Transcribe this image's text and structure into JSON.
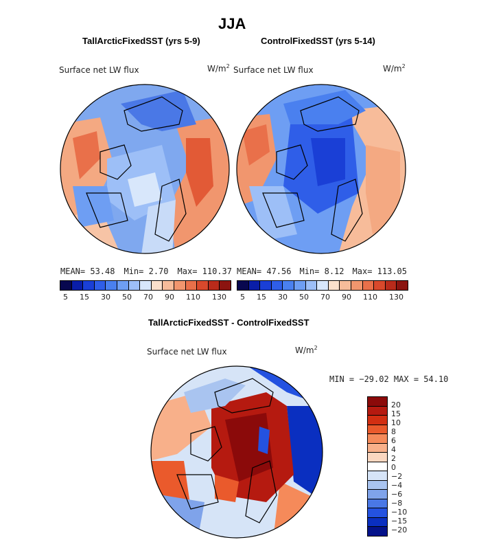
{
  "figure": {
    "title": "JJA"
  },
  "panels": [
    {
      "title": "TallArcticFixedSST (yrs 5-9)",
      "field": "Surface net LW flux",
      "units_base": "W/m",
      "units_exp": "2",
      "stats": {
        "mean": "MEAN=  53.48",
        "min": "Min=   2.70",
        "max": "Max= 110.37"
      },
      "colorbar": {
        "colors": [
          "#08084f",
          "#0a1ea8",
          "#1a3fd6",
          "#2f5ee8",
          "#4a80ef",
          "#6e9ef3",
          "#9dbff7",
          "#d8e7fb",
          "#fbe0cc",
          "#f7bc9a",
          "#f1966e",
          "#e9704a",
          "#d9492c",
          "#b92b1b",
          "#8b1410"
        ],
        "ticks": [
          "5",
          "15",
          "30",
          "50",
          "70",
          "90",
          "110",
          "130"
        ]
      }
    },
    {
      "title": "ControlFixedSST (yrs 5-14)",
      "field": "Surface net LW flux",
      "units_base": "W/m",
      "units_exp": "2",
      "stats": {
        "mean": "MEAN=  47.56",
        "min": "Min=   8.12",
        "max": "Max= 113.05"
      },
      "colorbar": {
        "colors": [
          "#08084f",
          "#0a1ea8",
          "#1a3fd6",
          "#2f5ee8",
          "#4a80ef",
          "#6e9ef3",
          "#9dbff7",
          "#d8e7fb",
          "#fbe0cc",
          "#f7bc9a",
          "#f1966e",
          "#e9704a",
          "#d9492c",
          "#b92b1b",
          "#8b1410"
        ],
        "ticks": [
          "5",
          "15",
          "30",
          "50",
          "70",
          "90",
          "110",
          "130"
        ]
      }
    },
    {
      "title": "TallArcticFixedSST - ControlFixedSST",
      "field": "Surface net LW flux",
      "units_base": "W/m",
      "units_exp": "2",
      "stats": {
        "range": "MIN = −29.02 MAX =   54.10"
      },
      "colorbar": {
        "colors": [
          "#8b0a0a",
          "#b51a10",
          "#d22f12",
          "#ea5a2c",
          "#f58a5a",
          "#f8b08a",
          "#fbd7c0",
          "#ffffff",
          "#d6e4f7",
          "#a9c4f0",
          "#7fa3ea",
          "#4a78e6",
          "#2452e0",
          "#0a2fc0",
          "#04128a"
        ],
        "ticks": [
          "20",
          "15",
          "10",
          "8",
          "6",
          "4",
          "2",
          "0",
          "−2",
          "−4",
          "−6",
          "−8",
          "−10",
          "−15",
          "−20"
        ]
      }
    }
  ]
}
